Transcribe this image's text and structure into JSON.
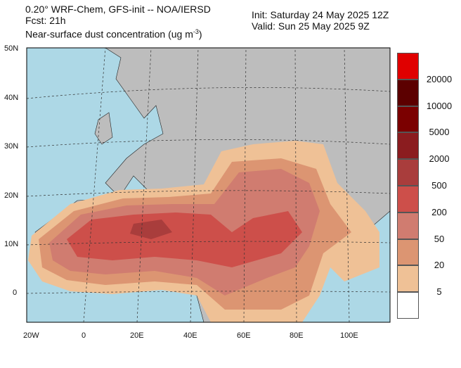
{
  "header": {
    "model": "0.20° WRF-Chem, GFS-init -- NOA/IERSD",
    "forecast": "Fcst: 21h",
    "variable": "Near-surface dust concentration (ug m",
    "variable_exp": "-3",
    "variable_end": ")",
    "init": "Init: Saturday 24 May 2025  12Z",
    "valid": "Valid: Sun 25 May 2025  9Z"
  },
  "axes": {
    "lat_labels": [
      "50N",
      "40N",
      "30N",
      "20N",
      "10N",
      "0"
    ],
    "lon_labels": [
      "20W",
      "0",
      "20E",
      "40E",
      "60E",
      "80E",
      "100E"
    ]
  },
  "colorbar": {
    "colors": [
      "#ffffff",
      "#efc196",
      "#dc9572",
      "#d07c70",
      "#cd4f4a",
      "#a93d3c",
      "#8b1c1f",
      "#7b0000",
      "#5c0000",
      "#e00000"
    ],
    "labels": [
      "5",
      "20",
      "50",
      "200",
      "500",
      "2000",
      "5000",
      "10000",
      "20000"
    ]
  },
  "colors": {
    "ocean": "#add8e6",
    "land": "#bdbdbd"
  }
}
